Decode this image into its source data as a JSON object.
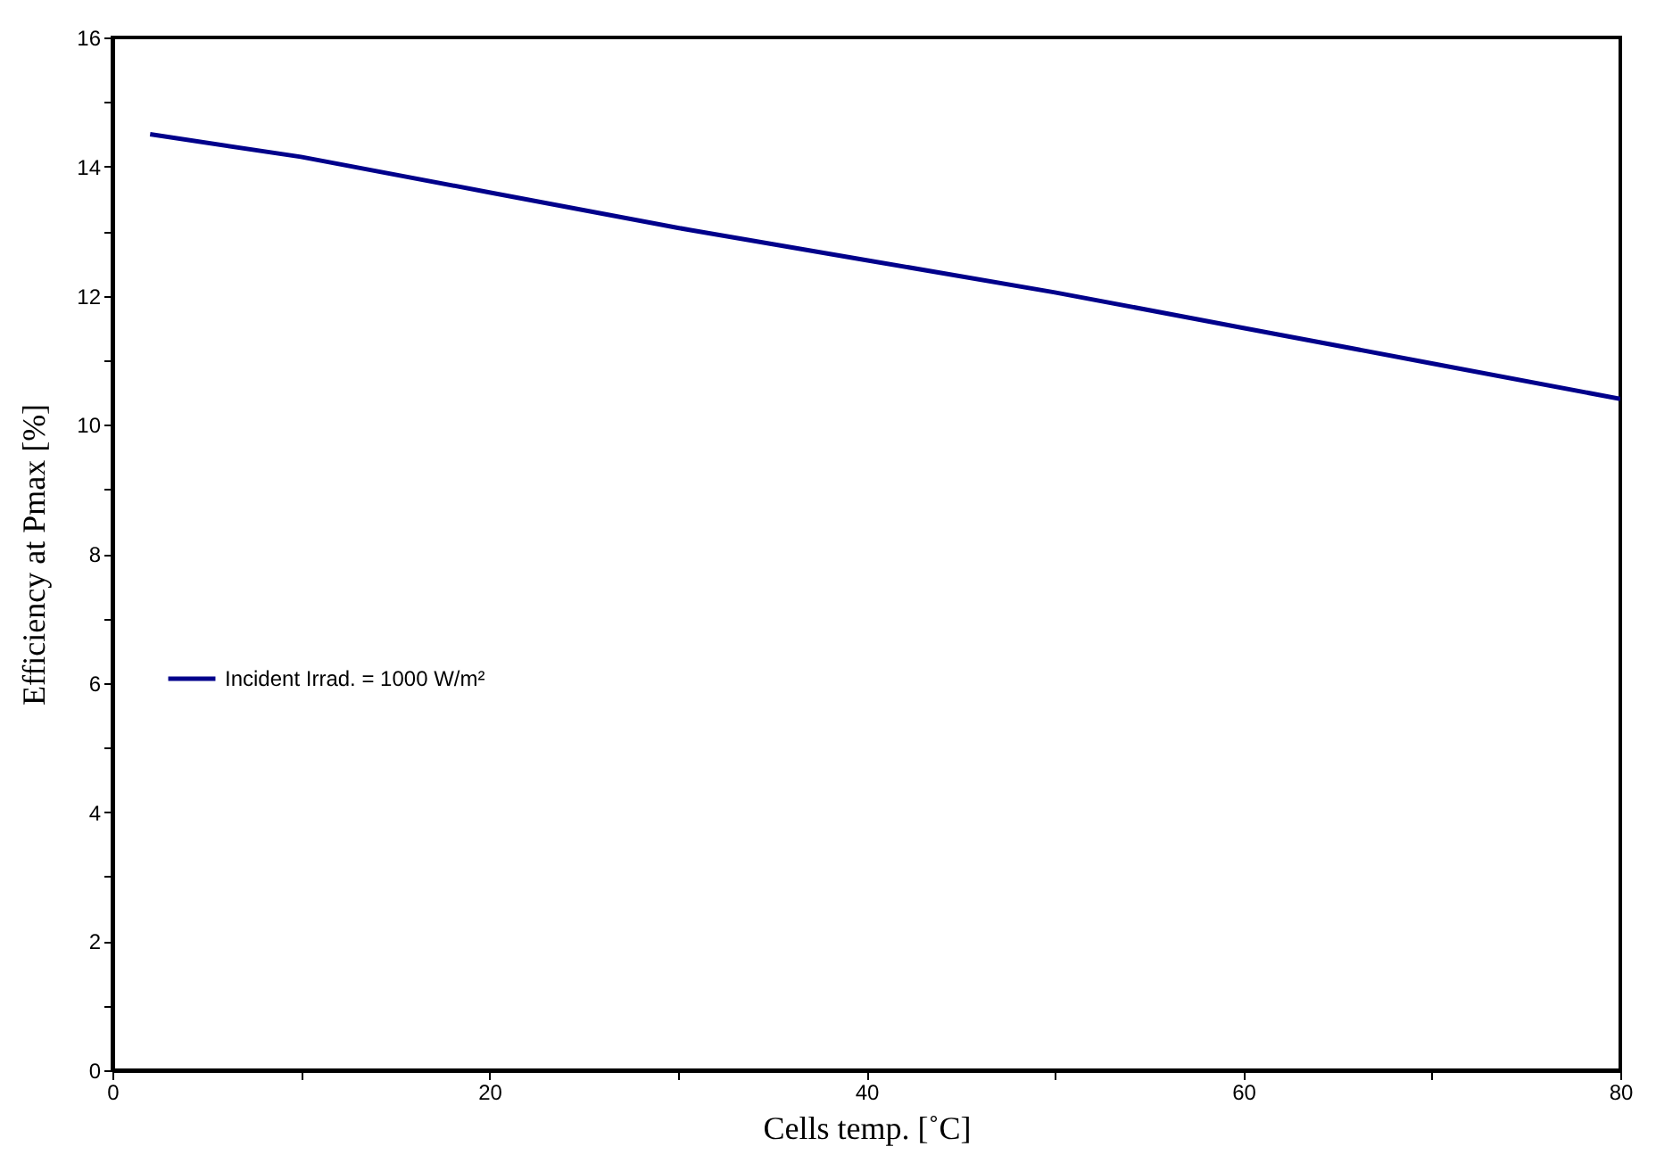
{
  "chart_data": {
    "type": "line",
    "xlabel": "Cells temp. [˚C]",
    "ylabel": "Efficiency at Pmax [%]",
    "x": [
      2,
      10,
      20,
      30,
      40,
      50,
      60,
      70,
      80
    ],
    "series": [
      {
        "name": "Incident Irrad. = 1000 W/m²",
        "color": "#00008b",
        "values": [
          14.5,
          14.15,
          13.6,
          13.05,
          12.55,
          12.05,
          11.5,
          10.95,
          10.4
        ]
      }
    ],
    "xlim": [
      0,
      80
    ],
    "xticks": [
      0,
      {
        "value": 10,
        "label": null
      },
      20,
      {
        "value": 30,
        "label": null
      },
      40,
      {
        "value": 50,
        "label": null
      },
      60,
      {
        "value": 70,
        "label": null
      },
      80
    ],
    "ylim": [
      0,
      16
    ],
    "yticks": [
      0,
      {
        "value": 1,
        "label": null
      },
      2,
      {
        "value": 3,
        "label": null
      },
      4,
      {
        "value": 5,
        "label": null
      },
      6,
      {
        "value": 7,
        "label": null
      },
      8,
      {
        "value": 9,
        "label": null
      },
      10,
      {
        "value": 11,
        "label": null
      },
      12,
      {
        "value": 13,
        "label": null
      },
      14,
      {
        "value": 15,
        "label": null
      },
      16
    ],
    "grid": false,
    "legend": "left",
    "marker": "none",
    "line_style": "solid"
  }
}
